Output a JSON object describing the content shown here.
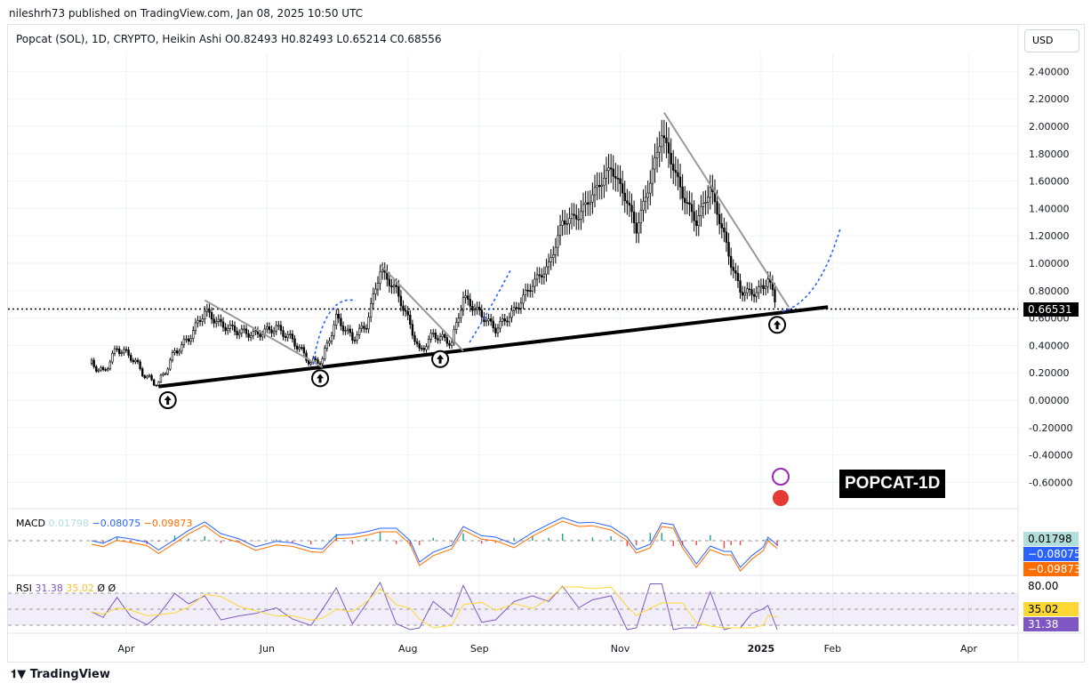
{
  "header": {
    "published": "nileshrh73 published on TradingView.com, Jan 08, 2025 10:50 UTC",
    "legend": "Popcat (SOL), 1D, CRYPTO, Heikin Ashi  O0.82493  H0.82493  L0.65214  C0.68556",
    "currency": "USD"
  },
  "annotation": "POPCAT-1D",
  "macd": {
    "name": "MACD",
    "hist": "0.01798",
    "macd": "−0.08075",
    "signal": "−0.09873",
    "colors": {
      "hist": "#b2dfdb",
      "macd": "#2962ff",
      "signal": "#ff6d00"
    }
  },
  "rsi": {
    "name": "RSI",
    "value": "31.38",
    "ma": "35.02",
    "extra1": "Ø",
    "extra2": "Ø",
    "level": "80.00",
    "colors": {
      "rsi": "#7e57c2",
      "ma": "#fdd835"
    }
  },
  "footer": {
    "logo": "TradingView"
  },
  "chart_data": {
    "type": "candlestick",
    "title": "Popcat (SOL), 1D, CRYPTO, Heikin Ashi",
    "ylim": [
      -0.7,
      2.5
    ],
    "yticks": [
      "2.40000",
      "2.20000",
      "2.00000",
      "1.80000",
      "1.60000",
      "1.40000",
      "1.20000",
      "1.00000",
      "0.80000",
      "0.60000",
      "0.40000",
      "0.20000",
      "0.00000",
      "-0.20000",
      "-0.40000",
      "-0.60000"
    ],
    "xticks": [
      {
        "label": "Apr",
        "date": "2024-04-01"
      },
      {
        "label": "Jun",
        "date": "2024-06-01"
      },
      {
        "label": "Aug",
        "date": "2024-08-01"
      },
      {
        "label": "Sep",
        "date": "2024-09-01"
      },
      {
        "label": "Nov",
        "date": "2024-11-01"
      },
      {
        "label": "2025",
        "date": "2025-01-01"
      },
      {
        "label": "Feb",
        "date": "2025-02-01"
      },
      {
        "label": "Apr",
        "date": "2025-04-01"
      }
    ],
    "current_price": "0.66531",
    "close_series": [
      [
        "2024-03-17",
        0.27
      ],
      [
        "2024-03-22",
        0.2
      ],
      [
        "2024-03-28",
        0.38
      ],
      [
        "2024-04-03",
        0.32
      ],
      [
        "2024-04-10",
        0.16
      ],
      [
        "2024-04-15",
        0.12
      ],
      [
        "2024-04-22",
        0.35
      ],
      [
        "2024-04-28",
        0.45
      ],
      [
        "2024-05-05",
        0.65
      ],
      [
        "2024-05-12",
        0.55
      ],
      [
        "2024-05-20",
        0.5
      ],
      [
        "2024-05-27",
        0.48
      ],
      [
        "2024-06-05",
        0.53
      ],
      [
        "2024-06-12",
        0.44
      ],
      [
        "2024-06-20",
        0.27
      ],
      [
        "2024-06-25",
        0.3
      ],
      [
        "2024-07-01",
        0.6
      ],
      [
        "2024-07-08",
        0.45
      ],
      [
        "2024-07-14",
        0.55
      ],
      [
        "2024-07-20",
        0.95
      ],
      [
        "2024-07-27",
        0.8
      ],
      [
        "2024-08-02",
        0.55
      ],
      [
        "2024-08-06",
        0.35
      ],
      [
        "2024-08-12",
        0.48
      ],
      [
        "2024-08-20",
        0.42
      ],
      [
        "2024-08-25",
        0.75
      ],
      [
        "2024-09-02",
        0.62
      ],
      [
        "2024-09-08",
        0.52
      ],
      [
        "2024-09-16",
        0.65
      ],
      [
        "2024-09-24",
        0.85
      ],
      [
        "2024-10-01",
        0.98
      ],
      [
        "2024-10-07",
        1.3
      ],
      [
        "2024-10-14",
        1.35
      ],
      [
        "2024-10-20",
        1.5
      ],
      [
        "2024-10-28",
        1.7
      ],
      [
        "2024-11-04",
        1.45
      ],
      [
        "2024-11-08",
        1.25
      ],
      [
        "2024-11-14",
        1.6
      ],
      [
        "2024-11-19",
        1.95
      ],
      [
        "2024-11-24",
        1.7
      ],
      [
        "2024-11-28",
        1.5
      ],
      [
        "2024-12-04",
        1.3
      ],
      [
        "2024-12-10",
        1.55
      ],
      [
        "2024-12-16",
        1.2
      ],
      [
        "2024-12-19",
        1.0
      ],
      [
        "2024-12-23",
        0.8
      ],
      [
        "2024-12-28",
        0.78
      ],
      [
        "2025-01-02",
        0.82
      ],
      [
        "2025-01-04",
        0.9
      ],
      [
        "2025-01-08",
        0.66
      ]
    ],
    "drawings": {
      "support": [
        [
          "2024-04-15",
          0.1
        ],
        [
          "2025-01-30",
          0.68
        ]
      ],
      "resistance": [
        [
          [
            "2024-05-05",
            0.73
          ],
          [
            "2024-06-25",
            0.24
          ]
        ],
        [
          [
            "2024-07-20",
            0.99
          ],
          [
            "2024-08-25",
            0.36
          ]
        ],
        [
          [
            "2024-11-20",
            2.1
          ],
          [
            "2025-01-13",
            0.68
          ]
        ]
      ],
      "arrows_up": [
        [
          "2024-04-19",
          0.0
        ],
        [
          "2024-06-24",
          0.16
        ],
        [
          "2024-08-15",
          0.3
        ],
        [
          "2025-01-08",
          0.55
        ]
      ]
    }
  }
}
